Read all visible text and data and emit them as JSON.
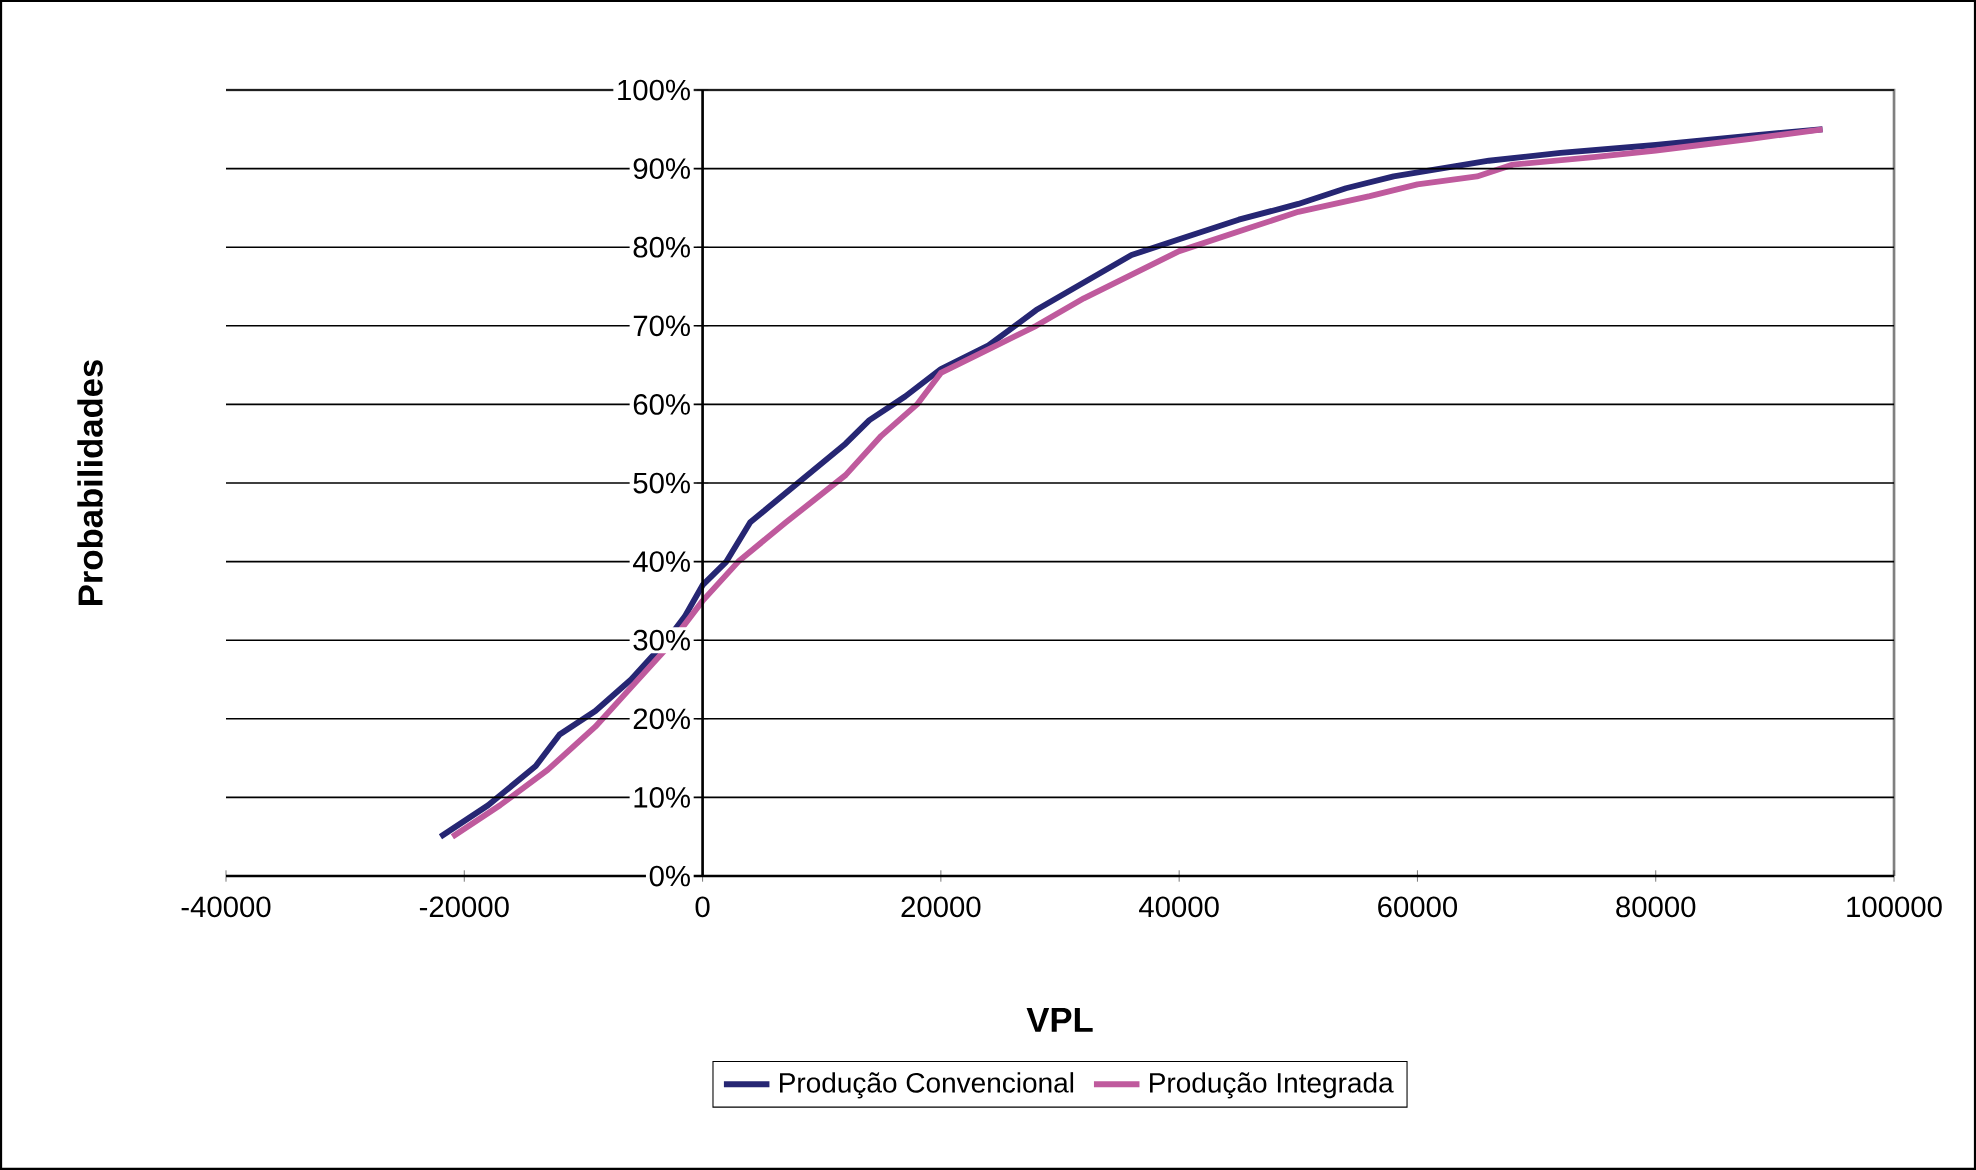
{
  "chart_data": {
    "type": "line",
    "xlabel": "VPL",
    "ylabel": "Probabilidades",
    "xlim": [
      -40000,
      100000
    ],
    "xticks": [
      -40000,
      -20000,
      0,
      20000,
      40000,
      60000,
      80000,
      100000
    ],
    "ylim": [
      0,
      100
    ],
    "yticks": [
      {
        "value": 0,
        "label": "0%"
      },
      {
        "value": 10,
        "label": "10%"
      },
      {
        "value": 20,
        "label": "20%"
      },
      {
        "value": 30,
        "label": "30%"
      },
      {
        "value": 40,
        "label": "40%"
      },
      {
        "value": 50,
        "label": "50%"
      },
      {
        "value": 60,
        "label": "60%"
      },
      {
        "value": 70,
        "label": "70%"
      },
      {
        "value": 80,
        "label": "80%"
      },
      {
        "value": 90,
        "label": "90%"
      },
      {
        "value": 100,
        "label": "100%"
      }
    ],
    "grid": "y",
    "legend": "bottom",
    "marker": "none",
    "line_style": "solid",
    "series": [
      {
        "name": "Produção Convencional",
        "color": "#262673",
        "x": [
          -22000,
          -18000,
          -14000,
          -12000,
          -9000,
          -6000,
          -3000,
          -1500,
          0,
          2000,
          4000,
          8000,
          12000,
          14000,
          17000,
          20000,
          24000,
          28000,
          32000,
          36000,
          40000,
          45000,
          50000,
          54000,
          58000,
          62000,
          66000,
          72000,
          80000,
          88000,
          94000
        ],
        "values": [
          5,
          9,
          14,
          18,
          21,
          25,
          30,
          33,
          37,
          40,
          45,
          50,
          55,
          58,
          61,
          64.5,
          67.5,
          72,
          75.5,
          79,
          81,
          83.5,
          85.5,
          87.5,
          89,
          90,
          91,
          92,
          93,
          94.2,
          95
        ]
      },
      {
        "name": "Produção Integrada",
        "color": "#bf5a9d",
        "x": [
          -21000,
          -17000,
          -13000,
          -9000,
          -6000,
          -3000,
          0,
          3000,
          7000,
          12000,
          15000,
          18000,
          20000,
          24000,
          28000,
          32000,
          36000,
          40000,
          46000,
          50000,
          56000,
          60000,
          65000,
          68000,
          75000,
          80000,
          88000,
          94000
        ],
        "values": [
          5,
          9,
          13.5,
          19,
          24,
          29,
          35,
          40,
          45,
          51,
          56,
          60,
          64,
          67,
          70,
          73.5,
          76.5,
          79.5,
          82.5,
          84.5,
          86.5,
          88,
          89,
          90.5,
          91.5,
          92.3,
          93.8,
          95
        ]
      }
    ]
  }
}
